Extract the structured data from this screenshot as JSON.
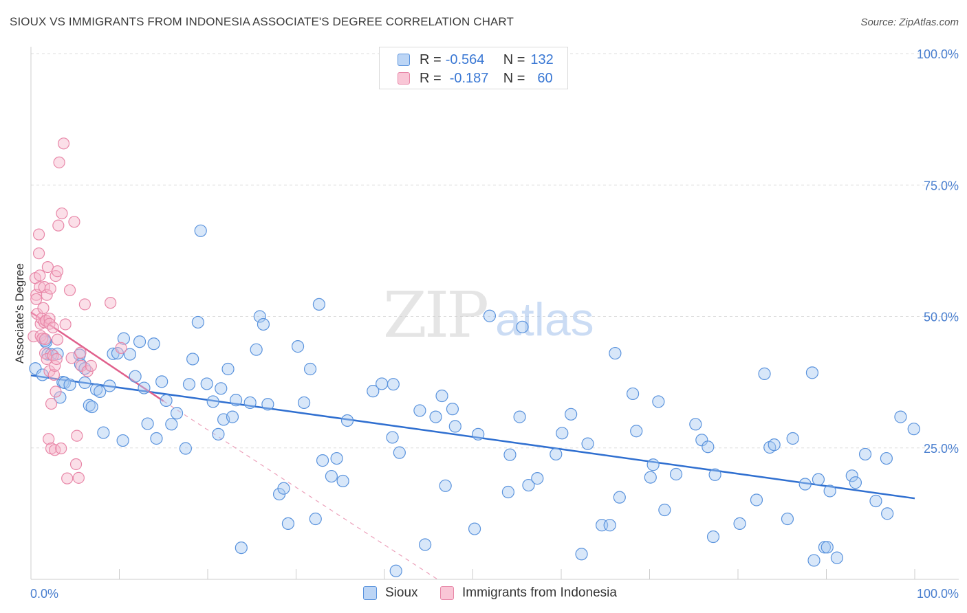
{
  "title": "SIOUX VS IMMIGRANTS FROM INDONESIA ASSOCIATE'S DEGREE CORRELATION CHART",
  "source": "Source: ZipAtlas.com",
  "watermark": {
    "zip": "ZIP",
    "atlas": "atlas"
  },
  "legend": {
    "rows": [
      {
        "r_label": "R =",
        "r_value": "-0.564",
        "n_label": "N =",
        "n_value": "132"
      },
      {
        "r_label": "R =",
        "r_value": "-0.187",
        "n_label": "N =",
        "n_value": "60"
      }
    ]
  },
  "bottom_legend": [
    "Sioux",
    "Immigrants from Indonesia"
  ],
  "colors": {
    "sioux_fill": "#a9c9f2",
    "sioux_stroke": "#5a93dd",
    "sioux_line": "#2f6fd0",
    "indonesia_fill": "#f7b7cb",
    "indonesia_stroke": "#e887a8",
    "indonesia_line": "#e0608c",
    "grid": "#dddddd",
    "tick_label": "#4a7fcf"
  },
  "chart_data": {
    "type": "scatter",
    "title": "SIOUX VS IMMIGRANTS FROM INDONESIA ASSOCIATE'S DEGREE CORRELATION CHART",
    "xlabel": "",
    "ylabel": "Associate's Degree",
    "xlim": [
      0,
      100
    ],
    "ylim": [
      0,
      100
    ],
    "x_tick_labels": [
      "0.0%",
      "100.0%"
    ],
    "y_tick_labels": [
      "100.0%",
      "75.0%",
      "50.0%",
      "25.0%"
    ],
    "y_ticks": [
      100,
      75,
      50,
      25
    ],
    "grid": true,
    "legend_position": "top-center",
    "series": [
      {
        "name": "Sioux",
        "r": -0.564,
        "n": 132,
        "trend": {
          "x": [
            0,
            100
          ],
          "y": [
            38.8,
            15.4
          ],
          "style": "solid"
        },
        "points": [
          [
            0.5,
            40.1
          ],
          [
            1.3,
            38.9
          ],
          [
            1.7,
            45.1
          ],
          [
            1.9,
            42.8
          ],
          [
            2.3,
            42.8
          ],
          [
            3.3,
            34.6
          ],
          [
            3.6,
            37.5
          ],
          [
            3.8,
            37.4
          ],
          [
            5.5,
            42.7
          ],
          [
            5.6,
            40.9
          ],
          [
            6.1,
            40.1
          ],
          [
            6.1,
            37.4
          ],
          [
            6.6,
            33.1
          ],
          [
            6.9,
            32.8
          ],
          [
            7.4,
            36.1
          ],
          [
            7.8,
            35.7
          ],
          [
            8.2,
            27.9
          ],
          [
            8.9,
            36.8
          ],
          [
            9.3,
            42.9
          ],
          [
            9.8,
            43.0
          ],
          [
            10.5,
            45.8
          ],
          [
            10.4,
            26.4
          ],
          [
            11.2,
            42.8
          ],
          [
            11.8,
            38.6
          ],
          [
            12.3,
            45.2
          ],
          [
            12.8,
            36.4
          ],
          [
            13.2,
            29.6
          ],
          [
            13.9,
            44.8
          ],
          [
            14.2,
            26.8
          ],
          [
            14.8,
            37.6
          ],
          [
            15.3,
            34.0
          ],
          [
            15.9,
            29.5
          ],
          [
            16.5,
            31.6
          ],
          [
            17.5,
            24.9
          ],
          [
            17.9,
            37.1
          ],
          [
            18.3,
            41.9
          ],
          [
            18.9,
            48.9
          ],
          [
            19.2,
            66.3
          ],
          [
            19.9,
            37.2
          ],
          [
            20.6,
            33.8
          ],
          [
            21.2,
            27.6
          ],
          [
            21.5,
            36.3
          ],
          [
            21.8,
            30.4
          ],
          [
            22.8,
            30.9
          ],
          [
            22.3,
            40.0
          ],
          [
            23.2,
            34.1
          ],
          [
            23.8,
            6.0
          ],
          [
            24.8,
            33.6
          ],
          [
            25.5,
            43.7
          ],
          [
            25.9,
            50.0
          ],
          [
            26.3,
            48.5
          ],
          [
            26.8,
            33.3
          ],
          [
            28.1,
            16.2
          ],
          [
            28.6,
            17.3
          ],
          [
            29.1,
            10.6
          ],
          [
            30.2,
            44.3
          ],
          [
            30.9,
            33.6
          ],
          [
            31.6,
            40.0
          ],
          [
            32.2,
            11.5
          ],
          [
            32.6,
            52.3
          ],
          [
            33.0,
            22.6
          ],
          [
            34.0,
            19.6
          ],
          [
            34.6,
            23.0
          ],
          [
            35.3,
            18.7
          ],
          [
            35.8,
            30.2
          ],
          [
            38.7,
            35.8
          ],
          [
            39.7,
            37.2
          ],
          [
            41.0,
            37.1
          ],
          [
            41.3,
            1.6
          ],
          [
            40.9,
            27.0
          ],
          [
            41.7,
            24.1
          ],
          [
            44.0,
            32.1
          ],
          [
            44.6,
            6.6
          ],
          [
            45.8,
            30.9
          ],
          [
            46.5,
            34.9
          ],
          [
            46.9,
            17.8
          ],
          [
            47.7,
            32.4
          ],
          [
            48.0,
            29.1
          ],
          [
            50.2,
            9.6
          ],
          [
            50.6,
            27.6
          ],
          [
            51.9,
            50.1
          ],
          [
            54.0,
            16.6
          ],
          [
            54.2,
            23.7
          ],
          [
            55.3,
            30.9
          ],
          [
            55.6,
            48.0
          ],
          [
            56.3,
            17.9
          ],
          [
            57.3,
            19.2
          ],
          [
            59.4,
            23.8
          ],
          [
            60.1,
            27.8
          ],
          [
            61.1,
            31.4
          ],
          [
            62.3,
            4.8
          ],
          [
            63.0,
            25.8
          ],
          [
            64.6,
            10.3
          ],
          [
            65.5,
            10.3
          ],
          [
            66.1,
            43.0
          ],
          [
            66.6,
            15.6
          ],
          [
            68.1,
            35.3
          ],
          [
            68.5,
            28.2
          ],
          [
            70.1,
            19.4
          ],
          [
            70.4,
            21.8
          ],
          [
            71.0,
            33.8
          ],
          [
            71.7,
            13.2
          ],
          [
            73.0,
            20.0
          ],
          [
            75.2,
            29.5
          ],
          [
            75.9,
            26.5
          ],
          [
            76.6,
            25.2
          ],
          [
            77.2,
            8.1
          ],
          [
            77.4,
            19.9
          ],
          [
            80.2,
            10.6
          ],
          [
            82.1,
            15.1
          ],
          [
            83.0,
            39.1
          ],
          [
            83.6,
            25.1
          ],
          [
            84.1,
            25.6
          ],
          [
            85.6,
            11.5
          ],
          [
            86.2,
            26.8
          ],
          [
            87.6,
            18.1
          ],
          [
            88.4,
            39.3
          ],
          [
            88.6,
            3.6
          ],
          [
            89.1,
            19.0
          ],
          [
            89.8,
            6.1
          ],
          [
            90.1,
            6.1
          ],
          [
            90.4,
            16.8
          ],
          [
            91.2,
            4.1
          ],
          [
            92.9,
            19.7
          ],
          [
            93.3,
            18.4
          ],
          [
            94.4,
            23.8
          ],
          [
            95.6,
            14.9
          ],
          [
            96.8,
            23.0
          ],
          [
            96.9,
            12.5
          ],
          [
            98.4,
            30.9
          ],
          [
            99.9,
            28.6
          ],
          [
            1.6,
            45.4
          ],
          [
            3.0,
            42.9
          ],
          [
            4.4,
            37.0
          ]
        ]
      },
      {
        "name": "Immigrants from Indonesia",
        "r": -0.187,
        "n": 60,
        "trend": {
          "x": [
            0,
            15
          ],
          "y": [
            50.8,
            33.9
          ],
          "style": "solid",
          "extension": {
            "x": [
              15,
              46
            ],
            "y": [
              33.9,
              -1.2
            ],
            "style": "dashed"
          }
        },
        "points": [
          [
            0.3,
            46.2
          ],
          [
            0.5,
            57.3
          ],
          [
            0.6,
            54.1
          ],
          [
            0.6,
            53.3
          ],
          [
            0.7,
            50.5
          ],
          [
            0.9,
            62.0
          ],
          [
            0.9,
            65.6
          ],
          [
            1.0,
            57.8
          ],
          [
            1.0,
            55.6
          ],
          [
            1.1,
            48.6
          ],
          [
            1.1,
            46.3
          ],
          [
            1.2,
            49.6
          ],
          [
            1.3,
            45.8
          ],
          [
            1.4,
            51.6
          ],
          [
            1.5,
            48.9
          ],
          [
            1.5,
            55.6
          ],
          [
            1.6,
            45.7
          ],
          [
            1.6,
            43.0
          ],
          [
            1.7,
            49.2
          ],
          [
            1.7,
            49.2
          ],
          [
            1.8,
            54.1
          ],
          [
            1.8,
            41.9
          ],
          [
            1.9,
            59.4
          ],
          [
            2.0,
            26.7
          ],
          [
            2.1,
            39.6
          ],
          [
            2.1,
            49.6
          ],
          [
            2.1,
            48.6
          ],
          [
            2.2,
            55.3
          ],
          [
            2.3,
            24.9
          ],
          [
            2.3,
            33.4
          ],
          [
            2.5,
            47.9
          ],
          [
            2.5,
            42.6
          ],
          [
            2.6,
            38.9
          ],
          [
            2.7,
            24.6
          ],
          [
            2.7,
            40.6
          ],
          [
            2.8,
            57.7
          ],
          [
            2.8,
            35.7
          ],
          [
            2.9,
            41.9
          ],
          [
            3.0,
            58.6
          ],
          [
            3.0,
            45.6
          ],
          [
            3.1,
            67.3
          ],
          [
            3.2,
            79.3
          ],
          [
            3.4,
            24.9
          ],
          [
            3.5,
            69.6
          ],
          [
            3.7,
            82.9
          ],
          [
            3.9,
            48.5
          ],
          [
            4.1,
            19.2
          ],
          [
            4.4,
            55.0
          ],
          [
            4.6,
            42.1
          ],
          [
            4.9,
            68.0
          ],
          [
            5.1,
            21.9
          ],
          [
            5.2,
            27.3
          ],
          [
            5.4,
            19.3
          ],
          [
            5.6,
            43.1
          ],
          [
            5.7,
            40.6
          ],
          [
            6.1,
            52.3
          ],
          [
            6.4,
            39.6
          ],
          [
            6.8,
            40.6
          ],
          [
            9.0,
            52.6
          ],
          [
            10.2,
            44.0
          ]
        ]
      }
    ]
  }
}
